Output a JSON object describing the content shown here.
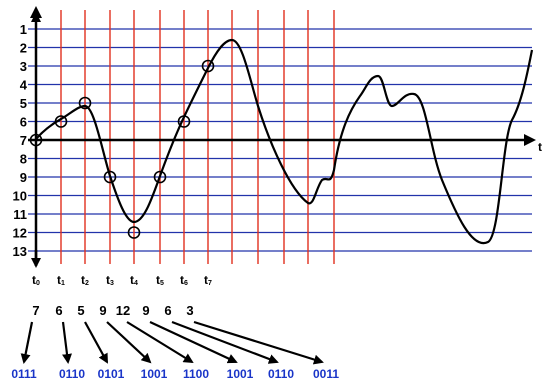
{
  "axis_label": "t",
  "levels": [
    "1",
    "2",
    "3",
    "4",
    "5",
    "6",
    "7",
    "8",
    "9",
    "10",
    "11",
    "12",
    "13"
  ],
  "time_labels": [
    {
      "base": "t",
      "sub": "0"
    },
    {
      "base": "t",
      "sub": "1"
    },
    {
      "base": "t",
      "sub": "2"
    },
    {
      "base": "t",
      "sub": "3"
    },
    {
      "base": "t",
      "sub": "4"
    },
    {
      "base": "t",
      "sub": "5"
    },
    {
      "base": "t",
      "sub": "6"
    },
    {
      "base": "t",
      "sub": "7"
    }
  ],
  "sample_values": [
    "7",
    "6",
    "5",
    "9",
    "12",
    "9",
    "6",
    "3"
  ],
  "binary_codes": [
    "0111",
    "0110",
    "0101",
    "1001",
    "1100",
    "1001",
    "0110",
    "0011"
  ],
  "colors": {
    "level_line": "#2233aa",
    "time_line": "#e0301e",
    "code": "#1a35c8",
    "curve": "#000000"
  },
  "icons": {
    "level_axis": "up-arrow-icon",
    "time_axis": "right-arrow-icon",
    "sample_marker": "circle-icon",
    "mapping": "arrow-icon"
  }
}
